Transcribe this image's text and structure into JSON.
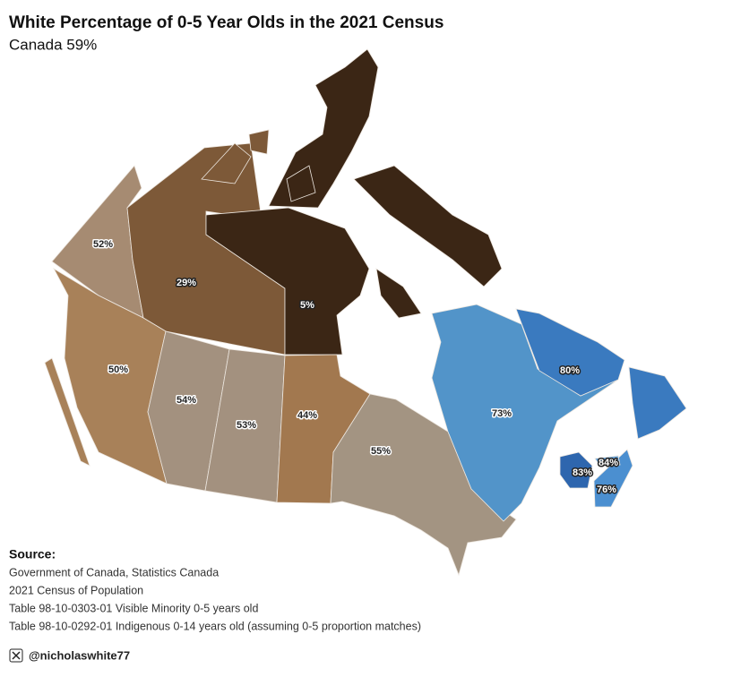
{
  "chart_data": {
    "type": "choropleth",
    "title": "White Percentage of 0-5 Year Olds in the 2021 Census",
    "subtitle": "Canada 59%",
    "values": [
      52,
      29,
      5,
      50,
      54,
      53,
      44,
      55,
      73,
      80,
      83,
      76,
      84
    ],
    "value_labels": [
      "52%",
      "29%",
      "5%",
      "50%",
      "54%",
      "53%",
      "44%",
      "55%",
      "73%",
      "80%",
      "83%",
      "76%",
      "84%"
    ],
    "colors": [
      "#a68b72",
      "#7d5938",
      "#3b2615",
      "#a88159",
      "#a3917f",
      "#a3917f",
      "#a2784f",
      "#a39482",
      "#5294c9",
      "#3a7abf",
      "#2e66ae",
      "#4b8fd0",
      "#6aa6dc"
    ],
    "source_title": "Source:",
    "source_lines": [
      "Government of Canada, Statistics Canada",
      "2021 Census of Population",
      "Table 98-10-0303-01 Visible Minority 0-5 years old",
      "Table 98-10-0292-01 Indigenous 0-14 years old (assuming 0-5 proportion matches)"
    ],
    "handle": "@nicholaswhite77"
  }
}
